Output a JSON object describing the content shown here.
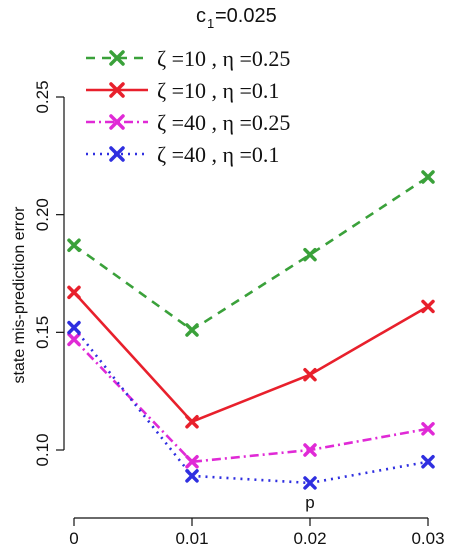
{
  "chart_data": {
    "type": "line",
    "title_main": "c",
    "title_sub": "1",
    "title_rest": " =0.025",
    "ylabel": "state mis-prediction error",
    "xlabel": "",
    "x": [
      0,
      0.01,
      0.02,
      0.03
    ],
    "x_tick_labels": [
      "0",
      "0.01",
      "0.02",
      "0.03"
    ],
    "y_ticks": [
      0.1,
      0.15,
      0.2,
      0.25
    ],
    "y_tick_labels": [
      "0.10",
      "0.15",
      "0.20",
      "0.25"
    ],
    "xlim": [
      0,
      0.03
    ],
    "ylim": [
      0.1,
      0.25
    ],
    "grid": false,
    "legend_position": "top-left",
    "annotation": {
      "text": "p",
      "x": 0.02,
      "y": 0.086
    },
    "series": [
      {
        "name": "ζ =10 , η =0.25",
        "color": "#3aa13a",
        "dash": "9,7",
        "marker": "x",
        "values": [
          0.187,
          0.151,
          0.183,
          0.216
        ]
      },
      {
        "name": "ζ =10 , η =0.1",
        "color": "#e8202c",
        "dash": "",
        "marker": "x",
        "values": [
          0.167,
          0.112,
          0.132,
          0.161
        ]
      },
      {
        "name": "ζ =40 , η =0.25",
        "color": "#e02ad6",
        "dash": "9,4,2,4",
        "marker": "x",
        "values": [
          0.147,
          0.095,
          0.1,
          0.109
        ]
      },
      {
        "name": "ζ =40 , η =0.1",
        "color": "#2f2fe0",
        "dash": "2,5",
        "marker": "x",
        "values": [
          0.152,
          0.089,
          0.086,
          0.095
        ]
      }
    ]
  }
}
